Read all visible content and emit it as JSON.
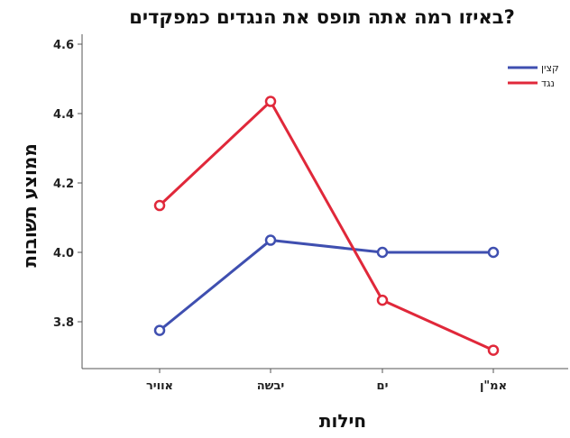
{
  "chart_data": {
    "type": "line",
    "title": "באיזו רמה אתה תופס את הנגדים כמפקדים?",
    "xlabel": "חילות",
    "ylabel": "ממוצע תשובות",
    "categories": [
      "אוויר",
      "יבשה",
      "ים",
      "אמ\"ן"
    ],
    "ylim": [
      3.68,
      4.62
    ],
    "yticks": [
      "3.8",
      "4.0",
      "4.2",
      "4.4",
      "4.6"
    ],
    "grid": false,
    "legend_position": "top-right",
    "series": [
      {
        "name": "קצין",
        "color": "#3f4fb0",
        "values": [
          3.775,
          4.035,
          4.0,
          4.0
        ]
      },
      {
        "name": "נגד",
        "color": "#e0283a",
        "values": [
          4.135,
          4.435,
          3.862,
          3.718
        ]
      }
    ]
  }
}
